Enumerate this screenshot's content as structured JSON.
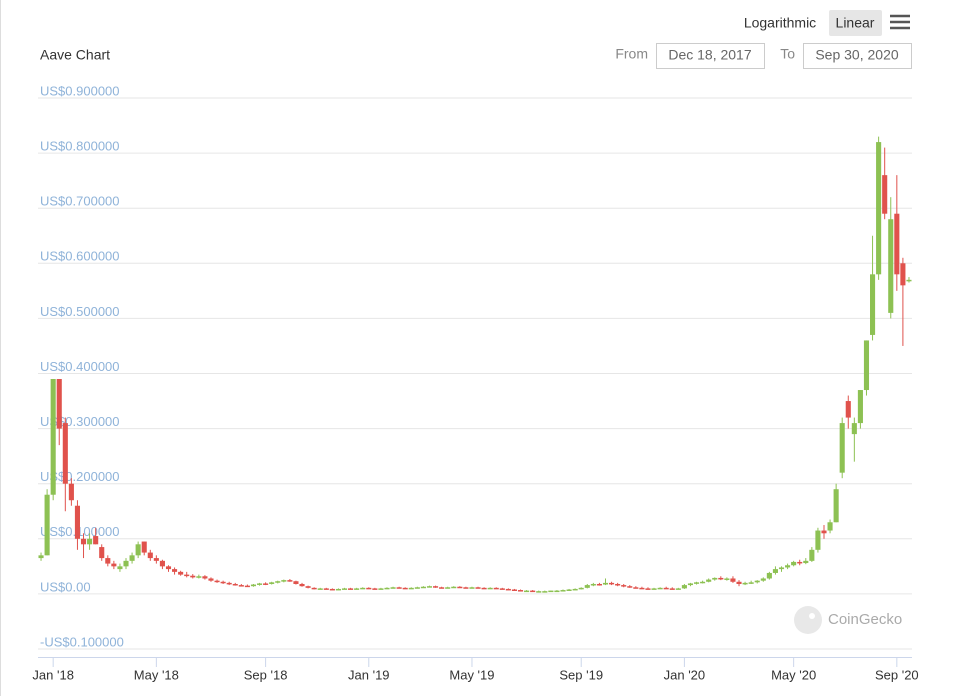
{
  "controls": {
    "scale_options": [
      "Logarithmic",
      "Linear"
    ],
    "from_label": "From",
    "from_date": "Dec 18, 2017",
    "to_label": "To",
    "to_date": "Sep 30, 2020"
  },
  "watermark": "CoinGecko",
  "chart_data": {
    "type": "candlestick",
    "title": "Aave Chart",
    "up_color": "#8dc153",
    "down_color": "#e0524c",
    "grid": true,
    "ylim": [
      -0.1,
      0.9
    ],
    "yticks": [
      {
        "value": -0.1,
        "label": "-US$0.100000"
      },
      {
        "value": 0,
        "label": "US$0.00"
      },
      {
        "value": 0.1,
        "label": "US$0.100000"
      },
      {
        "value": 0.2,
        "label": "US$0.200000"
      },
      {
        "value": 0.3,
        "label": "US$0.300000"
      },
      {
        "value": 0.4,
        "label": "US$0.400000"
      },
      {
        "value": 0.5,
        "label": "US$0.500000"
      },
      {
        "value": 0.6,
        "label": "US$0.600000"
      },
      {
        "value": 0.7,
        "label": "US$0.700000"
      },
      {
        "value": 0.8,
        "label": "US$0.800000"
      },
      {
        "value": 0.9,
        "label": "US$0.900000"
      }
    ],
    "categories": [
      null,
      null,
      "Jan '18",
      null,
      null,
      null,
      null,
      null,
      null,
      null,
      null,
      null,
      null,
      null,
      null,
      null,
      null,
      null,
      null,
      "May '18",
      null,
      null,
      null,
      null,
      null,
      null,
      null,
      null,
      null,
      null,
      null,
      null,
      null,
      null,
      null,
      null,
      null,
      "Sep '18",
      null,
      null,
      null,
      null,
      null,
      null,
      null,
      null,
      null,
      null,
      null,
      null,
      null,
      null,
      null,
      null,
      "Jan '19",
      null,
      null,
      null,
      null,
      null,
      null,
      null,
      null,
      null,
      null,
      null,
      null,
      null,
      null,
      null,
      null,
      "May '19",
      null,
      null,
      null,
      null,
      null,
      null,
      null,
      null,
      null,
      null,
      null,
      null,
      null,
      null,
      null,
      null,
      null,
      "Sep '19",
      null,
      null,
      null,
      null,
      null,
      null,
      null,
      null,
      null,
      null,
      null,
      null,
      null,
      null,
      null,
      null,
      "Jan '20",
      null,
      null,
      null,
      null,
      null,
      null,
      null,
      null,
      null,
      null,
      null,
      null,
      null,
      null,
      null,
      null,
      null,
      "May '20",
      null,
      null,
      null,
      null,
      null,
      null,
      null,
      null,
      null,
      null,
      null,
      null,
      null,
      null,
      null,
      null,
      "Sep '20",
      null,
      null
    ],
    "ohlc": [
      [
        0.065,
        0.075,
        0.06,
        0.07
      ],
      [
        0.07,
        0.19,
        0.07,
        0.18
      ],
      [
        0.18,
        0.39,
        0.17,
        0.39
      ],
      [
        0.39,
        0.39,
        0.27,
        0.3
      ],
      [
        0.31,
        0.32,
        0.15,
        0.2
      ],
      [
        0.2,
        0.21,
        0.16,
        0.17
      ],
      [
        0.16,
        0.17,
        0.08,
        0.1
      ],
      [
        0.1,
        0.11,
        0.065,
        0.09
      ],
      [
        0.09,
        0.11,
        0.08,
        0.1
      ],
      [
        0.105,
        0.12,
        0.09,
        0.09
      ],
      [
        0.085,
        0.09,
        0.06,
        0.065
      ],
      [
        0.065,
        0.07,
        0.05,
        0.055
      ],
      [
        0.055,
        0.06,
        0.045,
        0.05
      ],
      [
        0.045,
        0.055,
        0.04,
        0.05
      ],
      [
        0.05,
        0.065,
        0.045,
        0.06
      ],
      [
        0.06,
        0.075,
        0.055,
        0.07
      ],
      [
        0.07,
        0.095,
        0.065,
        0.09
      ],
      [
        0.095,
        0.095,
        0.07,
        0.075
      ],
      [
        0.075,
        0.08,
        0.06,
        0.065
      ],
      [
        0.065,
        0.07,
        0.055,
        0.06
      ],
      [
        0.06,
        0.062,
        0.045,
        0.05
      ],
      [
        0.05,
        0.052,
        0.04,
        0.045
      ],
      [
        0.045,
        0.048,
        0.035,
        0.04
      ],
      [
        0.04,
        0.042,
        0.033,
        0.035
      ],
      [
        0.035,
        0.04,
        0.03,
        0.033
      ],
      [
        0.033,
        0.036,
        0.028,
        0.03
      ],
      [
        0.03,
        0.035,
        0.028,
        0.032
      ],
      [
        0.032,
        0.034,
        0.026,
        0.028
      ],
      [
        0.028,
        0.03,
        0.022,
        0.024
      ],
      [
        0.024,
        0.026,
        0.02,
        0.022
      ],
      [
        0.022,
        0.024,
        0.018,
        0.02
      ],
      [
        0.02,
        0.022,
        0.016,
        0.018
      ],
      [
        0.018,
        0.02,
        0.015,
        0.016
      ],
      [
        0.016,
        0.018,
        0.014,
        0.015
      ],
      [
        0.015,
        0.017,
        0.013,
        0.014
      ],
      [
        0.014,
        0.018,
        0.013,
        0.017
      ],
      [
        0.017,
        0.02,
        0.015,
        0.019
      ],
      [
        0.019,
        0.021,
        0.016,
        0.018
      ],
      [
        0.018,
        0.022,
        0.017,
        0.021
      ],
      [
        0.021,
        0.024,
        0.019,
        0.023
      ],
      [
        0.023,
        0.026,
        0.021,
        0.025
      ],
      [
        0.025,
        0.027,
        0.022,
        0.023
      ],
      [
        0.023,
        0.024,
        0.017,
        0.018
      ],
      [
        0.018,
        0.02,
        0.013,
        0.014
      ],
      [
        0.014,
        0.015,
        0.01,
        0.011
      ],
      [
        0.011,
        0.012,
        0.008,
        0.009
      ],
      [
        0.009,
        0.011,
        0.008,
        0.01
      ],
      [
        0.01,
        0.011,
        0.008,
        0.009
      ],
      [
        0.009,
        0.01,
        0.007,
        0.008
      ],
      [
        0.008,
        0.01,
        0.007,
        0.009
      ],
      [
        0.009,
        0.011,
        0.008,
        0.01
      ],
      [
        0.01,
        0.011,
        0.008,
        0.009
      ],
      [
        0.009,
        0.011,
        0.008,
        0.01
      ],
      [
        0.01,
        0.012,
        0.009,
        0.011
      ],
      [
        0.011,
        0.012,
        0.009,
        0.01
      ],
      [
        0.01,
        0.011,
        0.008,
        0.009
      ],
      [
        0.009,
        0.011,
        0.008,
        0.01
      ],
      [
        0.01,
        0.012,
        0.009,
        0.011
      ],
      [
        0.011,
        0.013,
        0.01,
        0.012
      ],
      [
        0.012,
        0.013,
        0.01,
        0.011
      ],
      [
        0.011,
        0.012,
        0.009,
        0.01
      ],
      [
        0.01,
        0.012,
        0.009,
        0.011
      ],
      [
        0.011,
        0.013,
        0.01,
        0.012
      ],
      [
        0.012,
        0.014,
        0.011,
        0.013
      ],
      [
        0.013,
        0.015,
        0.012,
        0.014
      ],
      [
        0.014,
        0.015,
        0.011,
        0.012
      ],
      [
        0.012,
        0.013,
        0.01,
        0.011
      ],
      [
        0.011,
        0.013,
        0.01,
        0.012
      ],
      [
        0.012,
        0.014,
        0.011,
        0.013
      ],
      [
        0.013,
        0.014,
        0.011,
        0.012
      ],
      [
        0.012,
        0.013,
        0.01,
        0.011
      ],
      [
        0.011,
        0.013,
        0.01,
        0.012
      ],
      [
        0.012,
        0.013,
        0.01,
        0.011
      ],
      [
        0.011,
        0.012,
        0.009,
        0.01
      ],
      [
        0.01,
        0.012,
        0.009,
        0.011
      ],
      [
        0.011,
        0.012,
        0.009,
        0.01
      ],
      [
        0.01,
        0.011,
        0.008,
        0.009
      ],
      [
        0.009,
        0.01,
        0.007,
        0.008
      ],
      [
        0.008,
        0.009,
        0.006,
        0.007
      ],
      [
        0.007,
        0.008,
        0.005,
        0.006
      ],
      [
        0.006,
        0.007,
        0.005,
        0.006
      ],
      [
        0.006,
        0.007,
        0.005,
        0.005
      ],
      [
        0.005,
        0.006,
        0.004,
        0.005
      ],
      [
        0.005,
        0.006,
        0.004,
        0.005
      ],
      [
        0.005,
        0.006,
        0.004,
        0.006
      ],
      [
        0.006,
        0.007,
        0.005,
        0.006
      ],
      [
        0.006,
        0.008,
        0.005,
        0.007
      ],
      [
        0.007,
        0.009,
        0.006,
        0.008
      ],
      [
        0.008,
        0.01,
        0.007,
        0.009
      ],
      [
        0.009,
        0.012,
        0.008,
        0.011
      ],
      [
        0.011,
        0.018,
        0.01,
        0.016
      ],
      [
        0.016,
        0.02,
        0.014,
        0.018
      ],
      [
        0.018,
        0.02,
        0.015,
        0.017
      ],
      [
        0.017,
        0.028,
        0.016,
        0.02
      ],
      [
        0.02,
        0.022,
        0.016,
        0.018
      ],
      [
        0.018,
        0.02,
        0.014,
        0.016
      ],
      [
        0.016,
        0.018,
        0.012,
        0.014
      ],
      [
        0.014,
        0.016,
        0.011,
        0.012
      ],
      [
        0.012,
        0.014,
        0.01,
        0.011
      ],
      [
        0.011,
        0.013,
        0.009,
        0.01
      ],
      [
        0.01,
        0.012,
        0.008,
        0.009
      ],
      [
        0.009,
        0.011,
        0.008,
        0.01
      ],
      [
        0.01,
        0.012,
        0.009,
        0.011
      ],
      [
        0.011,
        0.013,
        0.009,
        0.01
      ],
      [
        0.01,
        0.012,
        0.008,
        0.009
      ],
      [
        0.009,
        0.011,
        0.008,
        0.01
      ],
      [
        0.01,
        0.018,
        0.009,
        0.016
      ],
      [
        0.016,
        0.02,
        0.014,
        0.019
      ],
      [
        0.019,
        0.022,
        0.017,
        0.021
      ],
      [
        0.021,
        0.024,
        0.019,
        0.022
      ],
      [
        0.022,
        0.028,
        0.021,
        0.026
      ],
      [
        0.026,
        0.03,
        0.024,
        0.029
      ],
      [
        0.029,
        0.032,
        0.025,
        0.027
      ],
      [
        0.027,
        0.03,
        0.024,
        0.028
      ],
      [
        0.028,
        0.032,
        0.02,
        0.022
      ],
      [
        0.022,
        0.025,
        0.014,
        0.018
      ],
      [
        0.018,
        0.022,
        0.016,
        0.02
      ],
      [
        0.02,
        0.024,
        0.018,
        0.021
      ],
      [
        0.021,
        0.025,
        0.019,
        0.024
      ],
      [
        0.024,
        0.03,
        0.022,
        0.028
      ],
      [
        0.028,
        0.04,
        0.026,
        0.038
      ],
      [
        0.038,
        0.05,
        0.035,
        0.045
      ],
      [
        0.045,
        0.05,
        0.04,
        0.048
      ],
      [
        0.048,
        0.055,
        0.045,
        0.052
      ],
      [
        0.052,
        0.06,
        0.05,
        0.058
      ],
      [
        0.058,
        0.062,
        0.052,
        0.056
      ],
      [
        0.056,
        0.065,
        0.054,
        0.06
      ],
      [
        0.06,
        0.085,
        0.058,
        0.08
      ],
      [
        0.08,
        0.12,
        0.075,
        0.115
      ],
      [
        0.115,
        0.125,
        0.1,
        0.11
      ],
      [
        0.115,
        0.135,
        0.11,
        0.13
      ],
      [
        0.13,
        0.2,
        0.13,
        0.19
      ],
      [
        0.22,
        0.32,
        0.21,
        0.31
      ],
      [
        0.35,
        0.36,
        0.3,
        0.32
      ],
      [
        0.29,
        0.32,
        0.24,
        0.31
      ],
      [
        0.31,
        0.37,
        0.3,
        0.37
      ],
      [
        0.37,
        0.46,
        0.36,
        0.46
      ],
      [
        0.47,
        0.65,
        0.46,
        0.58
      ],
      [
        0.58,
        0.83,
        0.57,
        0.82
      ],
      [
        0.76,
        0.81,
        0.68,
        0.69
      ],
      [
        0.51,
        0.72,
        0.5,
        0.68
      ],
      [
        0.69,
        0.76,
        0.55,
        0.58
      ],
      [
        0.6,
        0.61,
        0.45,
        0.56
      ],
      [
        0.57,
        0.575,
        0.565,
        0.57
      ]
    ]
  }
}
